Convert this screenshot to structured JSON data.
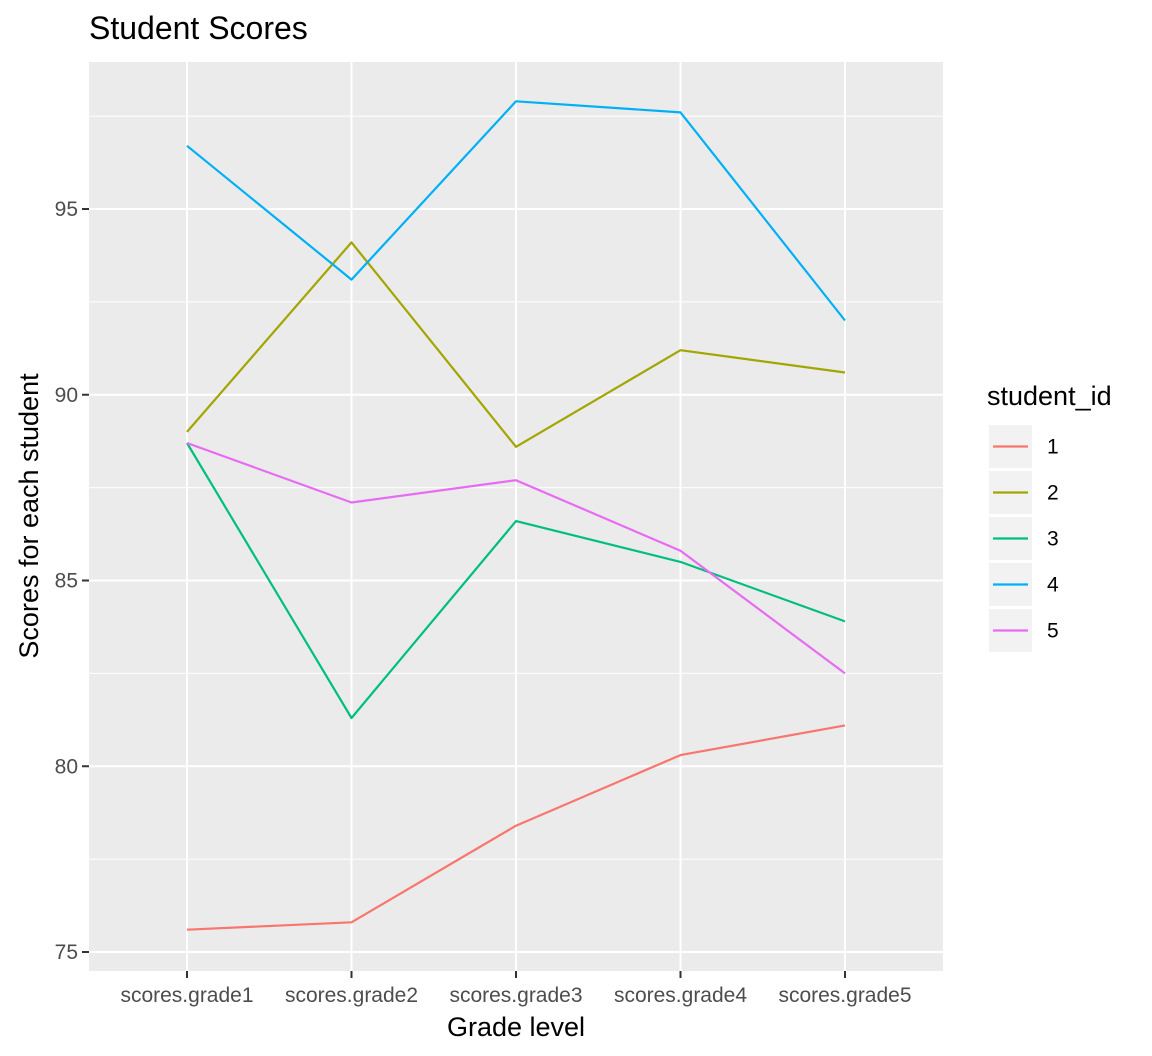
{
  "chart_data": {
    "type": "line",
    "title": "Student Scores",
    "xlabel": "Grade level",
    "ylabel": "Scores for each student",
    "categories": [
      "scores.grade1",
      "scores.grade2",
      "scores.grade3",
      "scores.grade4",
      "scores.grade5"
    ],
    "y_ticks": [
      75,
      80,
      85,
      90,
      95
    ],
    "ylim": [
      74.5,
      99.6
    ],
    "grid": true,
    "legend_title": "student_id",
    "legend_position": "right",
    "series": [
      {
        "name": "1",
        "color": "#F8766D",
        "values": [
          75.6,
          75.8,
          78.4,
          80.3,
          81.1
        ]
      },
      {
        "name": "2",
        "color": "#A3A500",
        "values": [
          89.0,
          94.1,
          88.6,
          91.2,
          90.6
        ]
      },
      {
        "name": "3",
        "color": "#00BF7D",
        "values": [
          88.7,
          81.3,
          86.6,
          85.5,
          83.9
        ]
      },
      {
        "name": "4",
        "color": "#00B0F6",
        "values": [
          96.7,
          93.1,
          97.9,
          97.6,
          92.0
        ]
      },
      {
        "name": "5",
        "color": "#E76BF3",
        "values": [
          88.7,
          87.1,
          87.7,
          85.8,
          82.5
        ]
      }
    ]
  }
}
